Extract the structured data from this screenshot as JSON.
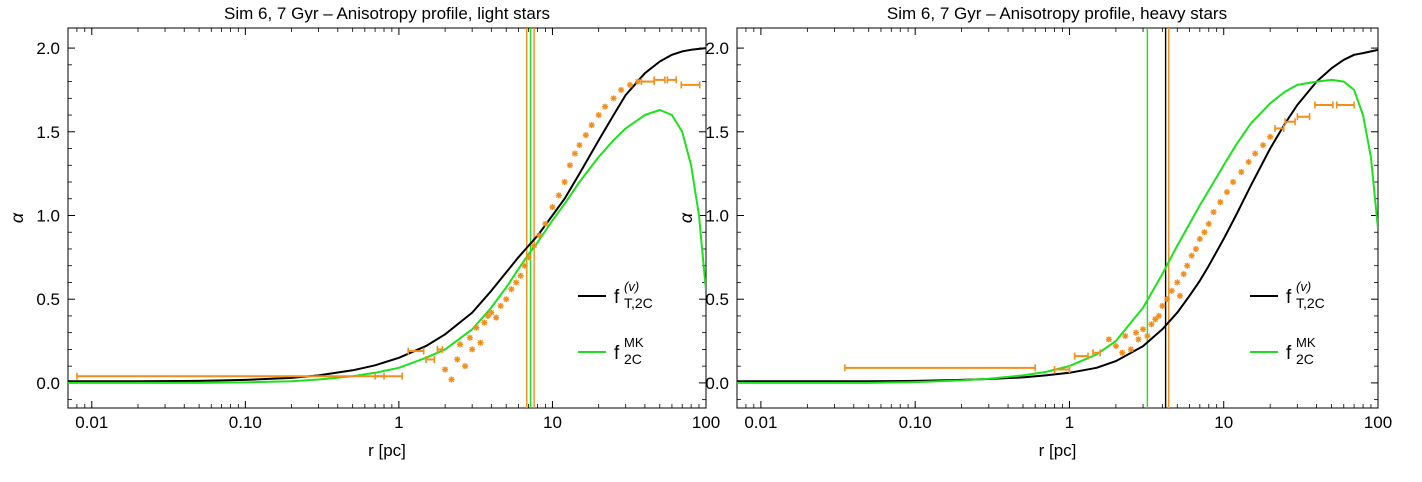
{
  "chart_data": [
    {
      "type": "scatter",
      "title": "Sim 6, 7 Gyr – Anisotropy profile, light stars",
      "xlabel": "r [pc]",
      "ylabel": "α",
      "xscale": "log",
      "xlim": [
        0.007,
        100
      ],
      "ylim": [
        -0.15,
        2.12
      ],
      "xticks": [
        0.01,
        0.1,
        1,
        10,
        100
      ],
      "xtick_labels": [
        "0.01",
        "0.10",
        "1",
        "10",
        "100"
      ],
      "yticks": [
        0,
        0.5,
        1,
        1.5,
        2
      ],
      "ytick_labels": [
        "0.0",
        "0.5",
        "1.0",
        "1.5",
        "2.0"
      ],
      "legend_position": "right",
      "vlines": [
        {
          "x": 6.8,
          "color": "#f28e1c"
        },
        {
          "x": 7.2,
          "color": "#1ee01e"
        },
        {
          "x": 7.6,
          "color": "#f28e1c"
        }
      ],
      "series": [
        {
          "name": "f^(v)_{T,2C}",
          "label_main": "f",
          "label_sup": "(v)",
          "label_sub": "T,2C",
          "kind": "line",
          "color": "#000000",
          "x": [
            0.007,
            0.02,
            0.05,
            0.1,
            0.2,
            0.3,
            0.5,
            0.7,
            1,
            1.5,
            2,
            3,
            4,
            5,
            6,
            7,
            8,
            10,
            12,
            15,
            20,
            25,
            30,
            40,
            50,
            60,
            70,
            80,
            100
          ],
          "y": [
            0.01,
            0.01,
            0.012,
            0.018,
            0.03,
            0.045,
            0.075,
            0.105,
            0.15,
            0.22,
            0.29,
            0.42,
            0.55,
            0.66,
            0.75,
            0.82,
            0.88,
            1.0,
            1.1,
            1.25,
            1.45,
            1.6,
            1.72,
            1.85,
            1.92,
            1.96,
            1.98,
            1.99,
            2.0
          ]
        },
        {
          "name": "f^MK_{2C}",
          "label_main": "f",
          "label_sup": "MK",
          "label_sub": "2C",
          "kind": "line",
          "color": "#1ee01e",
          "x": [
            0.007,
            0.05,
            0.1,
            0.2,
            0.3,
            0.5,
            0.7,
            1,
            1.5,
            2,
            3,
            4,
            5,
            6,
            7,
            8,
            10,
            12,
            15,
            20,
            25,
            30,
            40,
            50,
            60,
            70,
            80,
            90,
            100
          ],
          "y": [
            0.0,
            0.0,
            0.003,
            0.01,
            0.02,
            0.04,
            0.06,
            0.09,
            0.15,
            0.2,
            0.32,
            0.45,
            0.57,
            0.68,
            0.77,
            0.84,
            0.97,
            1.07,
            1.2,
            1.35,
            1.45,
            1.52,
            1.6,
            1.63,
            1.6,
            1.5,
            1.3,
            1.0,
            0.55
          ]
        },
        {
          "name": "data",
          "kind": "errorbar",
          "color": "#f28e1c",
          "points": [
            {
              "x": 0.35,
              "xlo": 0.008,
              "xhi": 0.8,
              "y": 0.04
            },
            {
              "x": 0.9,
              "xlo": 0.7,
              "xhi": 1.05,
              "y": 0.04
            },
            {
              "x": 1.3,
              "xlo": 1.15,
              "xhi": 1.45,
              "y": 0.19
            },
            {
              "x": 1.6,
              "xlo": 1.5,
              "xhi": 1.7,
              "y": 0.14
            },
            {
              "x": 1.85,
              "xlo": 1.78,
              "xhi": 1.92,
              "y": 0.2
            },
            {
              "x": 2.0,
              "y": 0.08
            },
            {
              "x": 2.2,
              "y": 0.02
            },
            {
              "x": 2.4,
              "y": 0.14
            },
            {
              "x": 2.5,
              "y": 0.23
            },
            {
              "x": 2.7,
              "y": 0.1
            },
            {
              "x": 2.9,
              "y": 0.27
            },
            {
              "x": 3.0,
              "y": 0.2
            },
            {
              "x": 3.2,
              "y": 0.33
            },
            {
              "x": 3.4,
              "y": 0.24
            },
            {
              "x": 3.6,
              "y": 0.36
            },
            {
              "x": 3.8,
              "y": 0.4
            },
            {
              "x": 4.0,
              "y": 0.42
            },
            {
              "x": 4.3,
              "y": 0.39
            },
            {
              "x": 4.6,
              "y": 0.46
            },
            {
              "x": 5.0,
              "y": 0.5
            },
            {
              "x": 5.4,
              "y": 0.56
            },
            {
              "x": 5.8,
              "y": 0.6
            },
            {
              "x": 6.2,
              "y": 0.64
            },
            {
              "x": 6.6,
              "y": 0.7
            },
            {
              "x": 7.0,
              "y": 0.75
            },
            {
              "x": 7.6,
              "y": 0.82
            },
            {
              "x": 8.2,
              "y": 0.88
            },
            {
              "x": 9.0,
              "y": 0.95
            },
            {
              "x": 10,
              "y": 1.05
            },
            {
              "x": 11,
              "y": 1.12
            },
            {
              "x": 12,
              "y": 1.2
            },
            {
              "x": 13,
              "y": 1.3
            },
            {
              "x": 14,
              "y": 1.37
            },
            {
              "x": 15,
              "y": 1.42
            },
            {
              "x": 16.5,
              "y": 1.48
            },
            {
              "x": 18,
              "y": 1.54
            },
            {
              "x": 20,
              "y": 1.6
            },
            {
              "x": 22,
              "y": 1.65
            },
            {
              "x": 25,
              "y": 1.7
            },
            {
              "x": 28,
              "y": 1.75
            },
            {
              "x": 32,
              "y": 1.78
            },
            {
              "x": 36,
              "y": 1.8
            },
            {
              "x": 42,
              "xlo": 38,
              "xhi": 46,
              "y": 1.8
            },
            {
              "x": 50,
              "xlo": 46,
              "xhi": 54,
              "y": 1.81
            },
            {
              "x": 60,
              "xlo": 56,
              "xhi": 64,
              "y": 1.81
            },
            {
              "x": 80,
              "xlo": 69,
              "xhi": 91,
              "y": 1.78
            }
          ]
        }
      ]
    },
    {
      "type": "scatter",
      "title": "Sim 6, 7 Gyr – Anisotropy profile, heavy stars",
      "xlabel": "r [pc]",
      "ylabel": "α",
      "xscale": "log",
      "xlim": [
        0.007,
        100
      ],
      "ylim": [
        -0.15,
        2.12
      ],
      "xticks": [
        0.01,
        0.1,
        1,
        10,
        100
      ],
      "xtick_labels": [
        "0.01",
        "0.10",
        "1",
        "10",
        "100"
      ],
      "yticks": [
        0,
        0.5,
        1,
        1.5,
        2
      ],
      "ytick_labels": [
        "0.0",
        "0.5",
        "1.0",
        "1.5",
        "2.0"
      ],
      "legend_position": "right",
      "vlines": [
        {
          "x": 3.2,
          "color": "#1ee01e"
        },
        {
          "x": 4.2,
          "color": "#000000"
        },
        {
          "x": 4.4,
          "color": "#f28e1c"
        }
      ],
      "series": [
        {
          "name": "f^(v)_{T,2C}",
          "label_main": "f",
          "label_sup": "(v)",
          "label_sub": "T,2C",
          "kind": "line",
          "color": "#000000",
          "x": [
            0.007,
            0.05,
            0.1,
            0.2,
            0.3,
            0.5,
            0.7,
            1,
            1.5,
            2,
            3,
            4,
            5,
            6,
            7,
            8,
            10,
            12,
            15,
            20,
            25,
            30,
            40,
            50,
            60,
            70,
            80,
            100
          ],
          "y": [
            0.01,
            0.01,
            0.012,
            0.018,
            0.023,
            0.033,
            0.045,
            0.06,
            0.09,
            0.13,
            0.22,
            0.32,
            0.42,
            0.52,
            0.61,
            0.7,
            0.86,
            1.0,
            1.18,
            1.4,
            1.55,
            1.66,
            1.8,
            1.88,
            1.93,
            1.96,
            1.97,
            1.99
          ]
        },
        {
          "name": "f^MK_{2C}",
          "label_main": "f",
          "label_sup": "MK",
          "label_sub": "2C",
          "kind": "line",
          "color": "#1ee01e",
          "x": [
            0.007,
            0.05,
            0.1,
            0.2,
            0.3,
            0.5,
            0.7,
            1,
            1.5,
            2,
            3,
            4,
            5,
            6,
            7,
            8,
            10,
            12,
            15,
            20,
            25,
            30,
            40,
            50,
            60,
            70,
            80,
            90,
            100
          ],
          "y": [
            0.0,
            0.0,
            0.005,
            0.015,
            0.025,
            0.045,
            0.065,
            0.1,
            0.17,
            0.25,
            0.45,
            0.65,
            0.82,
            0.95,
            1.06,
            1.15,
            1.3,
            1.42,
            1.55,
            1.67,
            1.74,
            1.78,
            1.8,
            1.81,
            1.8,
            1.75,
            1.6,
            1.35,
            0.92
          ]
        },
        {
          "name": "data",
          "kind": "errorbar",
          "color": "#f28e1c",
          "points": [
            {
              "x": 0.3,
              "xlo": 0.035,
              "xhi": 0.6,
              "y": 0.09
            },
            {
              "x": 0.9,
              "xlo": 0.8,
              "xhi": 1.0,
              "y": 0.08
            },
            {
              "x": 1.2,
              "xlo": 1.08,
              "xhi": 1.32,
              "y": 0.16
            },
            {
              "x": 1.5,
              "xlo": 1.42,
              "xhi": 1.58,
              "y": 0.18
            },
            {
              "x": 1.8,
              "y": 0.26
            },
            {
              "x": 2.0,
              "y": 0.22
            },
            {
              "x": 2.2,
              "y": 0.18
            },
            {
              "x": 2.3,
              "y": 0.28
            },
            {
              "x": 2.5,
              "y": 0.2
            },
            {
              "x": 2.7,
              "y": 0.3
            },
            {
              "x": 2.8,
              "y": 0.26
            },
            {
              "x": 3.0,
              "y": 0.32
            },
            {
              "x": 3.2,
              "y": 0.28
            },
            {
              "x": 3.4,
              "y": 0.35
            },
            {
              "x": 3.6,
              "y": 0.38
            },
            {
              "x": 3.8,
              "y": 0.4
            },
            {
              "x": 4.0,
              "y": 0.46
            },
            {
              "x": 4.3,
              "y": 0.5
            },
            {
              "x": 4.6,
              "y": 0.55
            },
            {
              "x": 5.0,
              "y": 0.6
            },
            {
              "x": 5.2,
              "y": 0.52
            },
            {
              "x": 5.5,
              "y": 0.65
            },
            {
              "x": 5.8,
              "y": 0.7
            },
            {
              "x": 6.2,
              "y": 0.76
            },
            {
              "x": 6.6,
              "y": 0.8
            },
            {
              "x": 7.0,
              "y": 0.86
            },
            {
              "x": 7.5,
              "y": 0.9
            },
            {
              "x": 8.0,
              "y": 0.95
            },
            {
              "x": 8.6,
              "y": 1.02
            },
            {
              "x": 9.5,
              "y": 1.08
            },
            {
              "x": 10.5,
              "y": 1.14
            },
            {
              "x": 11.5,
              "y": 1.2
            },
            {
              "x": 13,
              "y": 1.26
            },
            {
              "x": 14.5,
              "y": 1.32
            },
            {
              "x": 16,
              "y": 1.37
            },
            {
              "x": 18,
              "y": 1.42
            },
            {
              "x": 20,
              "y": 1.47
            },
            {
              "x": 23,
              "xlo": 21.5,
              "xhi": 24.5,
              "y": 1.52
            },
            {
              "x": 27,
              "xlo": 25,
              "xhi": 29,
              "y": 1.56
            },
            {
              "x": 33,
              "xlo": 30,
              "xhi": 36,
              "y": 1.59
            },
            {
              "x": 45,
              "xlo": 39,
              "xhi": 51,
              "y": 1.66
            },
            {
              "x": 62,
              "xlo": 54,
              "xhi": 70,
              "y": 1.66
            }
          ]
        }
      ]
    }
  ]
}
